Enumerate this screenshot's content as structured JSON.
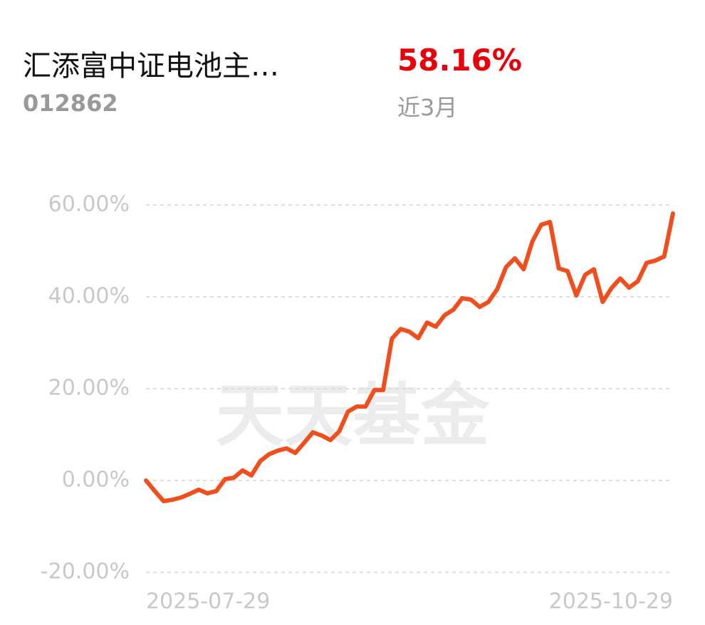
{
  "header": {
    "fund_name": "汇添富中证电池主…",
    "fund_code": "012862",
    "return": "58.16%",
    "period": "近3月"
  },
  "watermark": "天天基金",
  "chart_data": {
    "type": "line",
    "categories": [
      "2025-07-29",
      null,
      null,
      null,
      null,
      null,
      null,
      null,
      null,
      null,
      null,
      null,
      null,
      null,
      null,
      null,
      null,
      null,
      null,
      null,
      null,
      null,
      null,
      null,
      null,
      null,
      null,
      null,
      null,
      null,
      null,
      null,
      null,
      null,
      null,
      null,
      null,
      null,
      null,
      null,
      null,
      null,
      null,
      null,
      null,
      null,
      null,
      null,
      null,
      null,
      null,
      null,
      null,
      null,
      null,
      null,
      null,
      null,
      null,
      null,
      "2025-10-29"
    ],
    "series": [
      {
        "color": "#f04e1c",
        "values": [
          0,
          -2.3,
          -4.5,
          -4.2,
          -3.7,
          -2.9,
          -2.0,
          -2.8,
          -2.3,
          0.3,
          0.6,
          2.2,
          1.1,
          4.2,
          5.7,
          6.5,
          7.0,
          6.0,
          8.2,
          10.5,
          9.8,
          8.8,
          10.7,
          15.0,
          16.1,
          16.1,
          19.7,
          19.7,
          30.9,
          33.0,
          32.4,
          31.0,
          34.4,
          33.5,
          36.0,
          37.2,
          39.7,
          39.4,
          37.8,
          38.9,
          41.7,
          46.5,
          48.4,
          46.0,
          52.1,
          55.7,
          56.3,
          46.2,
          45.6,
          40.3,
          44.8,
          46.0,
          38.9,
          41.9,
          44.0,
          42.0,
          43.4,
          47.4,
          47.9,
          48.8,
          58.16
        ]
      }
    ],
    "ylim": [
      -20,
      60
    ],
    "yticks": [
      {
        "value": -20,
        "label": "-20.00%"
      },
      {
        "value": 0,
        "label": "0.00%"
      },
      {
        "value": 20,
        "label": "20.00%"
      },
      {
        "value": 40,
        "label": "40.00%"
      },
      {
        "value": 60,
        "label": "60.00%"
      }
    ],
    "grid": true
  }
}
